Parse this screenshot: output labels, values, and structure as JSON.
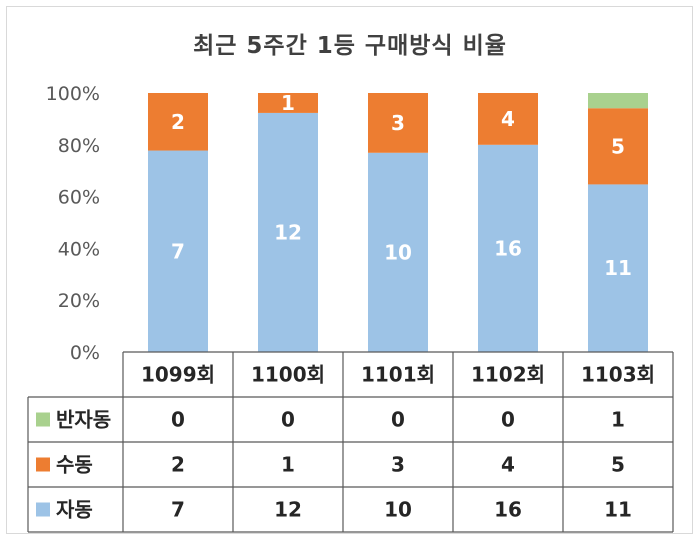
{
  "chart_data": {
    "type": "bar",
    "stacked": "percent",
    "title": "최근 5주간 1등 구매방식 비율",
    "categories": [
      "1099회",
      "1100회",
      "1101회",
      "1102회",
      "1103회"
    ],
    "series": [
      {
        "name": "자동",
        "values": [
          7,
          12,
          10,
          16,
          11
        ],
        "color": "#9dc3e6"
      },
      {
        "name": "수동",
        "values": [
          2,
          1,
          3,
          4,
          5
        ],
        "color": "#ed7d31"
      },
      {
        "name": "반자동",
        "values": [
          0,
          0,
          0,
          0,
          1
        ],
        "color": "#a9d18e"
      }
    ],
    "y_ticks": [
      "0%",
      "20%",
      "40%",
      "60%",
      "80%",
      "100%"
    ],
    "ylim": [
      0,
      100
    ],
    "grid": false,
    "legend": "data-table",
    "data_table_rows": [
      {
        "series": "반자동",
        "values": [
          "0",
          "0",
          "0",
          "0",
          "1"
        ]
      },
      {
        "series": "수동",
        "values": [
          "2",
          "1",
          "3",
          "4",
          "5"
        ]
      },
      {
        "series": "자동",
        "values": [
          "7",
          "12",
          "10",
          "16",
          "11"
        ]
      }
    ]
  }
}
